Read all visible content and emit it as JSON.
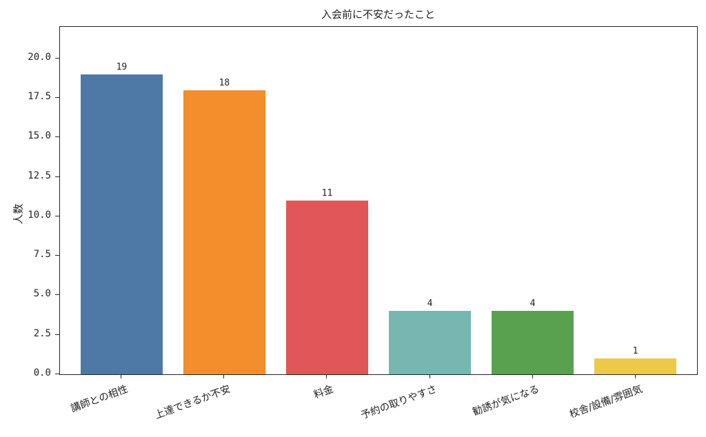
{
  "chart_data": {
    "type": "bar",
    "title": "入会前に不安だったこと",
    "xlabel": "",
    "ylabel": "人数",
    "categories": [
      "講師との相性",
      "上達できるか不安",
      "料金",
      "予約の取りやすさ",
      "勧誘が気になる",
      "校舎/設備/雰囲気"
    ],
    "values": [
      19,
      18,
      11,
      4,
      4,
      1
    ],
    "bar_labels": [
      "19",
      "18",
      "11",
      "4",
      "4",
      "1"
    ],
    "colors": [
      "#4e79a7",
      "#f28e2b",
      "#e15759",
      "#76b7b2",
      "#59a14f",
      "#edc948"
    ],
    "ylim": [
      0,
      22
    ],
    "yticks": [
      "0.0",
      "2.5",
      "5.0",
      "7.5",
      "10.0",
      "12.5",
      "15.0",
      "17.5",
      "20.0"
    ],
    "ytick_values": [
      0,
      2.5,
      5,
      7.5,
      10,
      12.5,
      15,
      17.5,
      20
    ],
    "xtick_rotation": -20,
    "grid": false,
    "legend": null
  }
}
